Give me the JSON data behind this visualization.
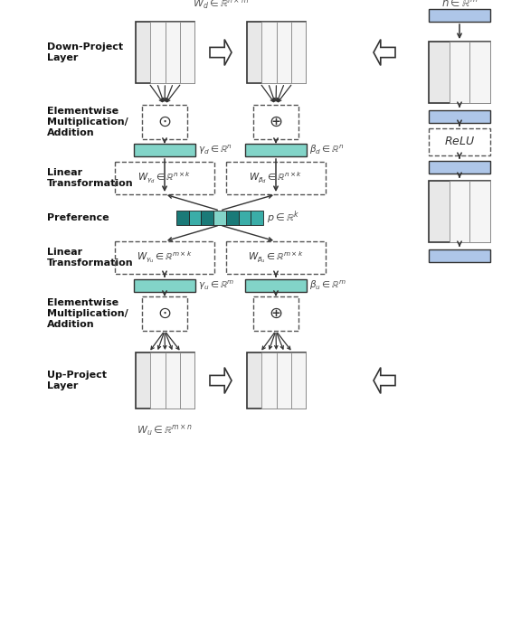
{
  "fig_width": 5.76,
  "fig_height": 6.86,
  "bg_color": "#ffffff",
  "colors": {
    "teal_light": "#82d4c8",
    "teal_mid": "#3aada8",
    "teal_dark": "#1a7a78",
    "blue_light": "#aec6e8",
    "gray_light": "#e8e8e8",
    "gray_inner": "#f2f2f2",
    "arrow": "#333333"
  },
  "labels": {
    "Wd": "$W_d \\in \\mathbb{R}^{n\\times m}$",
    "Wu": "$W_u \\in \\mathbb{R}^{m\\times n}$",
    "h": "$h \\in \\mathbb{R}^{m}$",
    "gamma_d": "$\\gamma_d \\in \\mathbb{R}^{n}$",
    "beta_d": "$\\beta_d \\in \\mathbb{R}^{n}$",
    "gamma_u": "$\\gamma_u \\in \\mathbb{R}^{m}$",
    "beta_u": "$\\beta_u \\in \\mathbb{R}^{m}$",
    "p": "$p \\in \\mathbb{R}^{k}$",
    "W_gamma_d": "$W_{\\gamma_d} \\in \\mathbb{R}^{n\\times k}$",
    "W_beta_d": "$W_{\\beta_d} \\in \\mathbb{R}^{n\\times k}$",
    "W_gamma_u": "$W_{\\gamma_u} \\in \\mathbb{R}^{m\\times k}$",
    "W_beta_u": "$W_{\\beta_u} \\in \\mathbb{R}^{m\\times k}$",
    "odot": "$\\odot$",
    "oplus": "$\\oplus$",
    "relu": "$ReLU$"
  }
}
